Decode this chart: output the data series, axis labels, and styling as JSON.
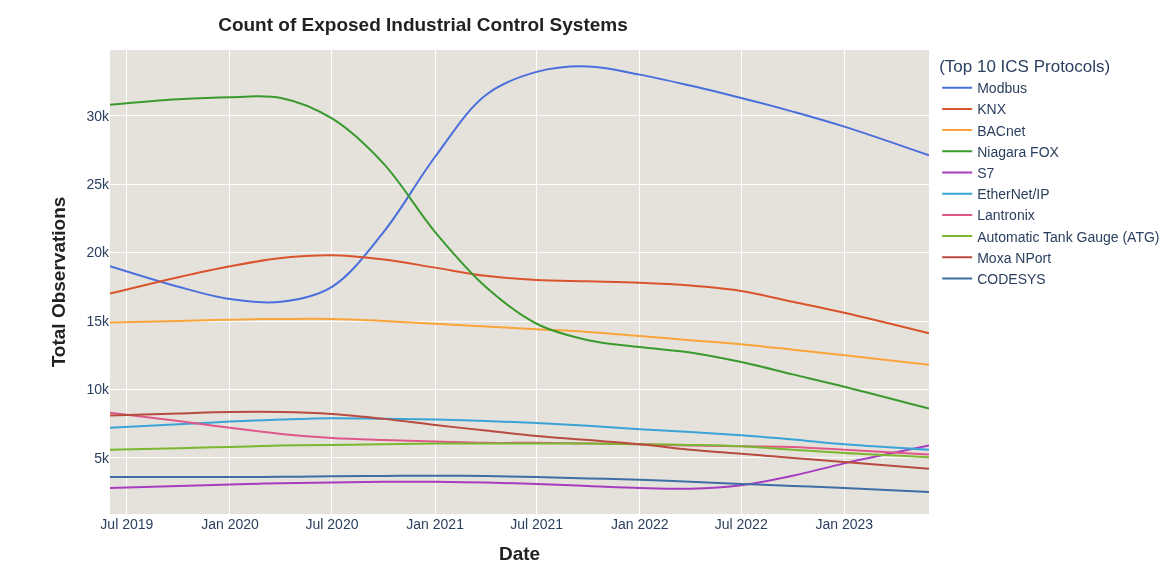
{
  "chart_data": {
    "type": "line",
    "title": "Count of Exposed Industrial Control Systems",
    "xlabel": "Date",
    "ylabel": "Total Observations",
    "legend_title": "(Top 10 ICS Protocols)",
    "x": [
      "2019-06",
      "2019-10",
      "2020-01",
      "2020-04",
      "2020-07",
      "2020-10",
      "2021-01",
      "2021-04",
      "2021-07",
      "2021-10",
      "2022-01",
      "2022-04",
      "2022-07",
      "2022-10",
      "2023-01",
      "2023-06"
    ],
    "series": [
      {
        "name": "Modbus",
        "color": "#4a6fdc",
        "values": [
          19.0,
          17.5,
          16.6,
          16.4,
          17.5,
          21.5,
          27.0,
          31.5,
          33.2,
          33.6,
          33.0,
          32.2,
          31.3,
          30.3,
          29.2,
          27.1
        ]
      },
      {
        "name": "KNX",
        "color": "#d9532c",
        "values": [
          17.0,
          18.2,
          19.0,
          19.6,
          19.8,
          19.5,
          18.9,
          18.3,
          18.0,
          17.9,
          17.8,
          17.6,
          17.2,
          16.4,
          15.6,
          14.1
        ]
      },
      {
        "name": "BACnet",
        "color": "#f9a53a",
        "values": [
          14.9,
          15.0,
          15.1,
          15.15,
          15.15,
          15.0,
          14.8,
          14.6,
          14.4,
          14.2,
          13.9,
          13.6,
          13.3,
          12.9,
          12.5,
          11.8
        ]
      },
      {
        "name": "Niagara FOX",
        "color": "#3a9a2e",
        "values": [
          30.8,
          31.2,
          31.35,
          31.3,
          29.8,
          26.5,
          21.5,
          17.5,
          14.8,
          13.6,
          13.1,
          12.7,
          12.0,
          11.1,
          10.2,
          8.6
        ]
      },
      {
        "name": "S7",
        "color": "#a63cc0",
        "values": [
          2.8,
          2.95,
          3.05,
          3.15,
          3.2,
          3.25,
          3.25,
          3.2,
          3.1,
          2.95,
          2.8,
          2.75,
          3.0,
          3.7,
          4.6,
          5.9
        ]
      },
      {
        "name": "EtherNet/IP",
        "color": "#3aa3d6",
        "values": [
          7.2,
          7.45,
          7.65,
          7.8,
          7.9,
          7.85,
          7.8,
          7.7,
          7.55,
          7.35,
          7.1,
          6.9,
          6.65,
          6.35,
          6.0,
          5.6
        ]
      },
      {
        "name": "Lantronix",
        "color": "#e0588a",
        "values": [
          8.3,
          7.7,
          7.2,
          6.75,
          6.45,
          6.3,
          6.2,
          6.1,
          6.1,
          6.05,
          6.0,
          5.9,
          5.85,
          5.8,
          5.6,
          5.25
        ]
      },
      {
        "name": "Automatic Tank Gauge (ATG)",
        "color": "#7cb82f",
        "values": [
          5.6,
          5.7,
          5.8,
          5.9,
          5.95,
          6.0,
          6.05,
          6.05,
          6.05,
          6.05,
          6.0,
          5.95,
          5.85,
          5.6,
          5.35,
          5.05
        ]
      },
      {
        "name": "Moxa NPort",
        "color": "#b84a3e",
        "values": [
          8.1,
          8.25,
          8.35,
          8.35,
          8.2,
          7.85,
          7.4,
          7.0,
          6.6,
          6.3,
          6.0,
          5.6,
          5.3,
          5.0,
          4.7,
          4.2
        ]
      },
      {
        "name": "CODESYS",
        "color": "#3f6ea5",
        "values": [
          3.6,
          3.6,
          3.6,
          3.62,
          3.65,
          3.68,
          3.7,
          3.68,
          3.6,
          3.5,
          3.4,
          3.25,
          3.1,
          2.95,
          2.8,
          2.5
        ]
      }
    ],
    "xlim": [
      "2019-06",
      "2023-06"
    ],
    "xticks": [
      {
        "value": "2019-07",
        "label": "Jul 2019"
      },
      {
        "value": "2020-01",
        "label": "Jan 2020"
      },
      {
        "value": "2020-07",
        "label": "Jul 2020"
      },
      {
        "value": "2021-01",
        "label": "Jan 2021"
      },
      {
        "value": "2021-07",
        "label": "Jul 2021"
      },
      {
        "value": "2022-01",
        "label": "Jan 2022"
      },
      {
        "value": "2022-07",
        "label": "Jul 2022"
      },
      {
        "value": "2023-01",
        "label": "Jan 2023"
      }
    ],
    "ylim": [
      0.9,
      34.8
    ],
    "yticks": [
      {
        "value": 5,
        "label": "5k"
      },
      {
        "value": 10,
        "label": "10k"
      },
      {
        "value": 15,
        "label": "15k"
      },
      {
        "value": 20,
        "label": "20k"
      },
      {
        "value": 25,
        "label": "25k"
      },
      {
        "value": 30,
        "label": "30k"
      }
    ],
    "grid": true,
    "legend": "right",
    "marker": "none",
    "line_style": "solid"
  }
}
